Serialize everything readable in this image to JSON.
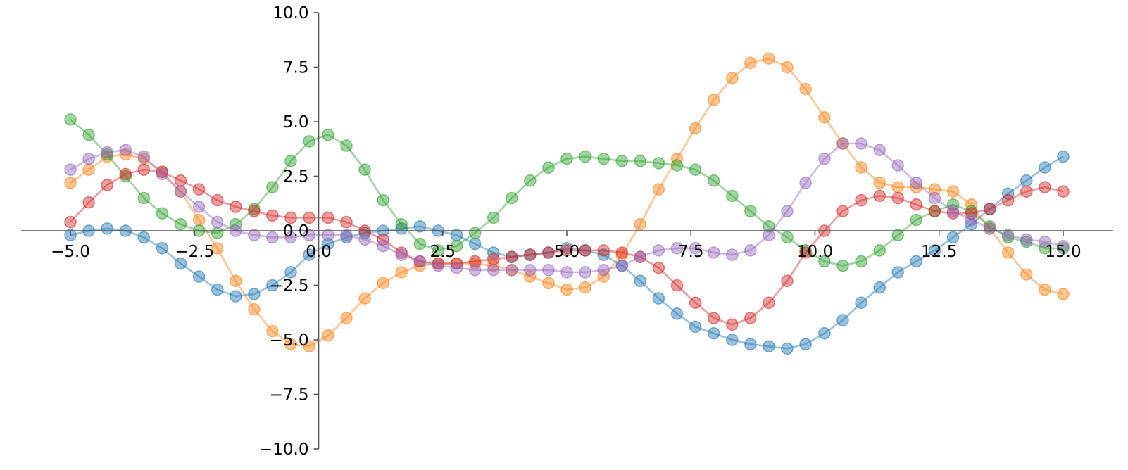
{
  "chart_data": {
    "type": "line",
    "title": "",
    "xlabel": "",
    "ylabel": "",
    "xlim": [
      -5.0,
      15.0
    ],
    "ylim": [
      -10.0,
      10.0
    ],
    "spines": "centered (axes cross at origin)",
    "grid": false,
    "legend": "none",
    "markers": "circle",
    "x_ticks": [
      "−5.0",
      "−2.5",
      "0.0",
      "2.5",
      "5.0",
      "7.5",
      "10.0",
      "12.5",
      "15.0"
    ],
    "y_ticks": [
      "−10.0",
      "−7.5",
      "−5.0",
      "−2.5",
      "0.0",
      "2.5",
      "5.0",
      "7.5",
      "10.0"
    ],
    "x": [
      -5.0,
      -4.63,
      -4.26,
      -3.89,
      -3.52,
      -3.15,
      -2.78,
      -2.41,
      -2.04,
      -1.67,
      -1.3,
      -0.93,
      -0.56,
      -0.19,
      0.19,
      0.56,
      0.93,
      1.3,
      1.67,
      2.04,
      2.41,
      2.78,
      3.15,
      3.52,
      3.89,
      4.26,
      4.63,
      5.0,
      5.37,
      5.74,
      6.11,
      6.48,
      6.85,
      7.22,
      7.59,
      7.96,
      8.33,
      8.7,
      9.07,
      9.44,
      9.81,
      10.19,
      10.56,
      10.93,
      11.3,
      11.67,
      12.04,
      12.41,
      12.78,
      13.15,
      13.52,
      13.89,
      14.26,
      14.63,
      15.0
    ],
    "series": [
      {
        "color": "#1f77b4",
        "values": [
          -0.2,
          0.0,
          0.1,
          0.0,
          -0.3,
          -0.8,
          -1.5,
          -2.1,
          -2.7,
          -3.0,
          -2.9,
          -2.5,
          -1.9,
          -1.1,
          -0.6,
          -0.3,
          -0.1,
          0.0,
          0.1,
          0.2,
          0.0,
          -0.2,
          -0.6,
          -1.0,
          -1.2,
          -1.1,
          -1.0,
          -0.8,
          -0.9,
          -1.1,
          -1.6,
          -2.3,
          -3.1,
          -3.8,
          -4.4,
          -4.7,
          -5.0,
          -5.2,
          -5.3,
          -5.4,
          -5.2,
          -4.7,
          -4.1,
          -3.3,
          -2.6,
          -1.9,
          -1.4,
          -0.9,
          -0.3,
          0.3,
          1.0,
          1.7,
          2.3,
          2.9,
          3.4
        ]
      },
      {
        "color": "#ff7f0e",
        "values": [
          2.2,
          2.8,
          3.4,
          3.5,
          3.3,
          2.7,
          1.8,
          0.5,
          -0.8,
          -2.3,
          -3.6,
          -4.6,
          -5.2,
          -5.3,
          -4.8,
          -4.0,
          -3.1,
          -2.4,
          -1.9,
          -1.6,
          -1.5,
          -1.5,
          -1.5,
          -1.6,
          -1.8,
          -2.1,
          -2.4,
          -2.7,
          -2.6,
          -2.1,
          -1.1,
          0.3,
          1.9,
          3.3,
          4.7,
          6.0,
          7.0,
          7.7,
          7.9,
          7.5,
          6.5,
          5.2,
          4.0,
          2.9,
          2.2,
          2.0,
          2.0,
          1.9,
          1.8,
          1.2,
          0.1,
          -1.0,
          -2.0,
          -2.7,
          -2.9
        ]
      },
      {
        "color": "#2ca02c",
        "values": [
          5.1,
          4.4,
          3.5,
          2.5,
          1.5,
          0.8,
          0.3,
          0.0,
          -0.1,
          0.3,
          1.0,
          2.0,
          3.2,
          4.1,
          4.4,
          3.9,
          2.8,
          1.4,
          0.3,
          -0.6,
          -0.9,
          -0.7,
          -0.1,
          0.6,
          1.5,
          2.3,
          2.9,
          3.3,
          3.4,
          3.3,
          3.2,
          3.2,
          3.1,
          3.0,
          2.8,
          2.3,
          1.6,
          0.9,
          0.2,
          -0.3,
          -0.9,
          -1.4,
          -1.6,
          -1.4,
          -0.9,
          -0.2,
          0.5,
          0.9,
          1.2,
          0.9,
          0.2,
          -0.3,
          -0.5,
          -0.8,
          -0.8
        ]
      },
      {
        "color": "#d62728",
        "values": [
          0.4,
          1.3,
          2.1,
          2.6,
          2.8,
          2.7,
          2.3,
          1.9,
          1.4,
          1.1,
          0.9,
          0.7,
          0.6,
          0.6,
          0.6,
          0.4,
          0.0,
          -0.4,
          -1.0,
          -1.4,
          -1.5,
          -1.5,
          -1.4,
          -1.3,
          -1.2,
          -1.1,
          -1.0,
          -0.9,
          -0.9,
          -0.9,
          -1.0,
          -1.2,
          -1.7,
          -2.5,
          -3.3,
          -4.0,
          -4.3,
          -4.0,
          -3.3,
          -2.3,
          -1.0,
          0.0,
          0.9,
          1.4,
          1.6,
          1.5,
          1.2,
          0.9,
          0.8,
          0.8,
          1.0,
          1.4,
          1.8,
          2.0,
          1.8
        ]
      },
      {
        "color": "#9467bd",
        "values": [
          2.8,
          3.3,
          3.6,
          3.7,
          3.4,
          2.6,
          1.8,
          1.1,
          0.4,
          0.0,
          -0.2,
          -0.3,
          -0.3,
          -0.2,
          -0.2,
          -0.2,
          -0.4,
          -0.7,
          -1.1,
          -1.4,
          -1.6,
          -1.7,
          -1.8,
          -1.8,
          -1.8,
          -1.8,
          -1.8,
          -1.9,
          -1.9,
          -1.8,
          -1.6,
          -1.2,
          -0.9,
          -0.8,
          -0.8,
          -1.0,
          -1.1,
          -0.9,
          -0.2,
          0.9,
          2.2,
          3.3,
          4.0,
          4.0,
          3.7,
          3.0,
          2.2,
          1.5,
          0.9,
          0.5,
          0.1,
          -0.2,
          -0.4,
          -0.5,
          -0.7
        ]
      }
    ]
  }
}
